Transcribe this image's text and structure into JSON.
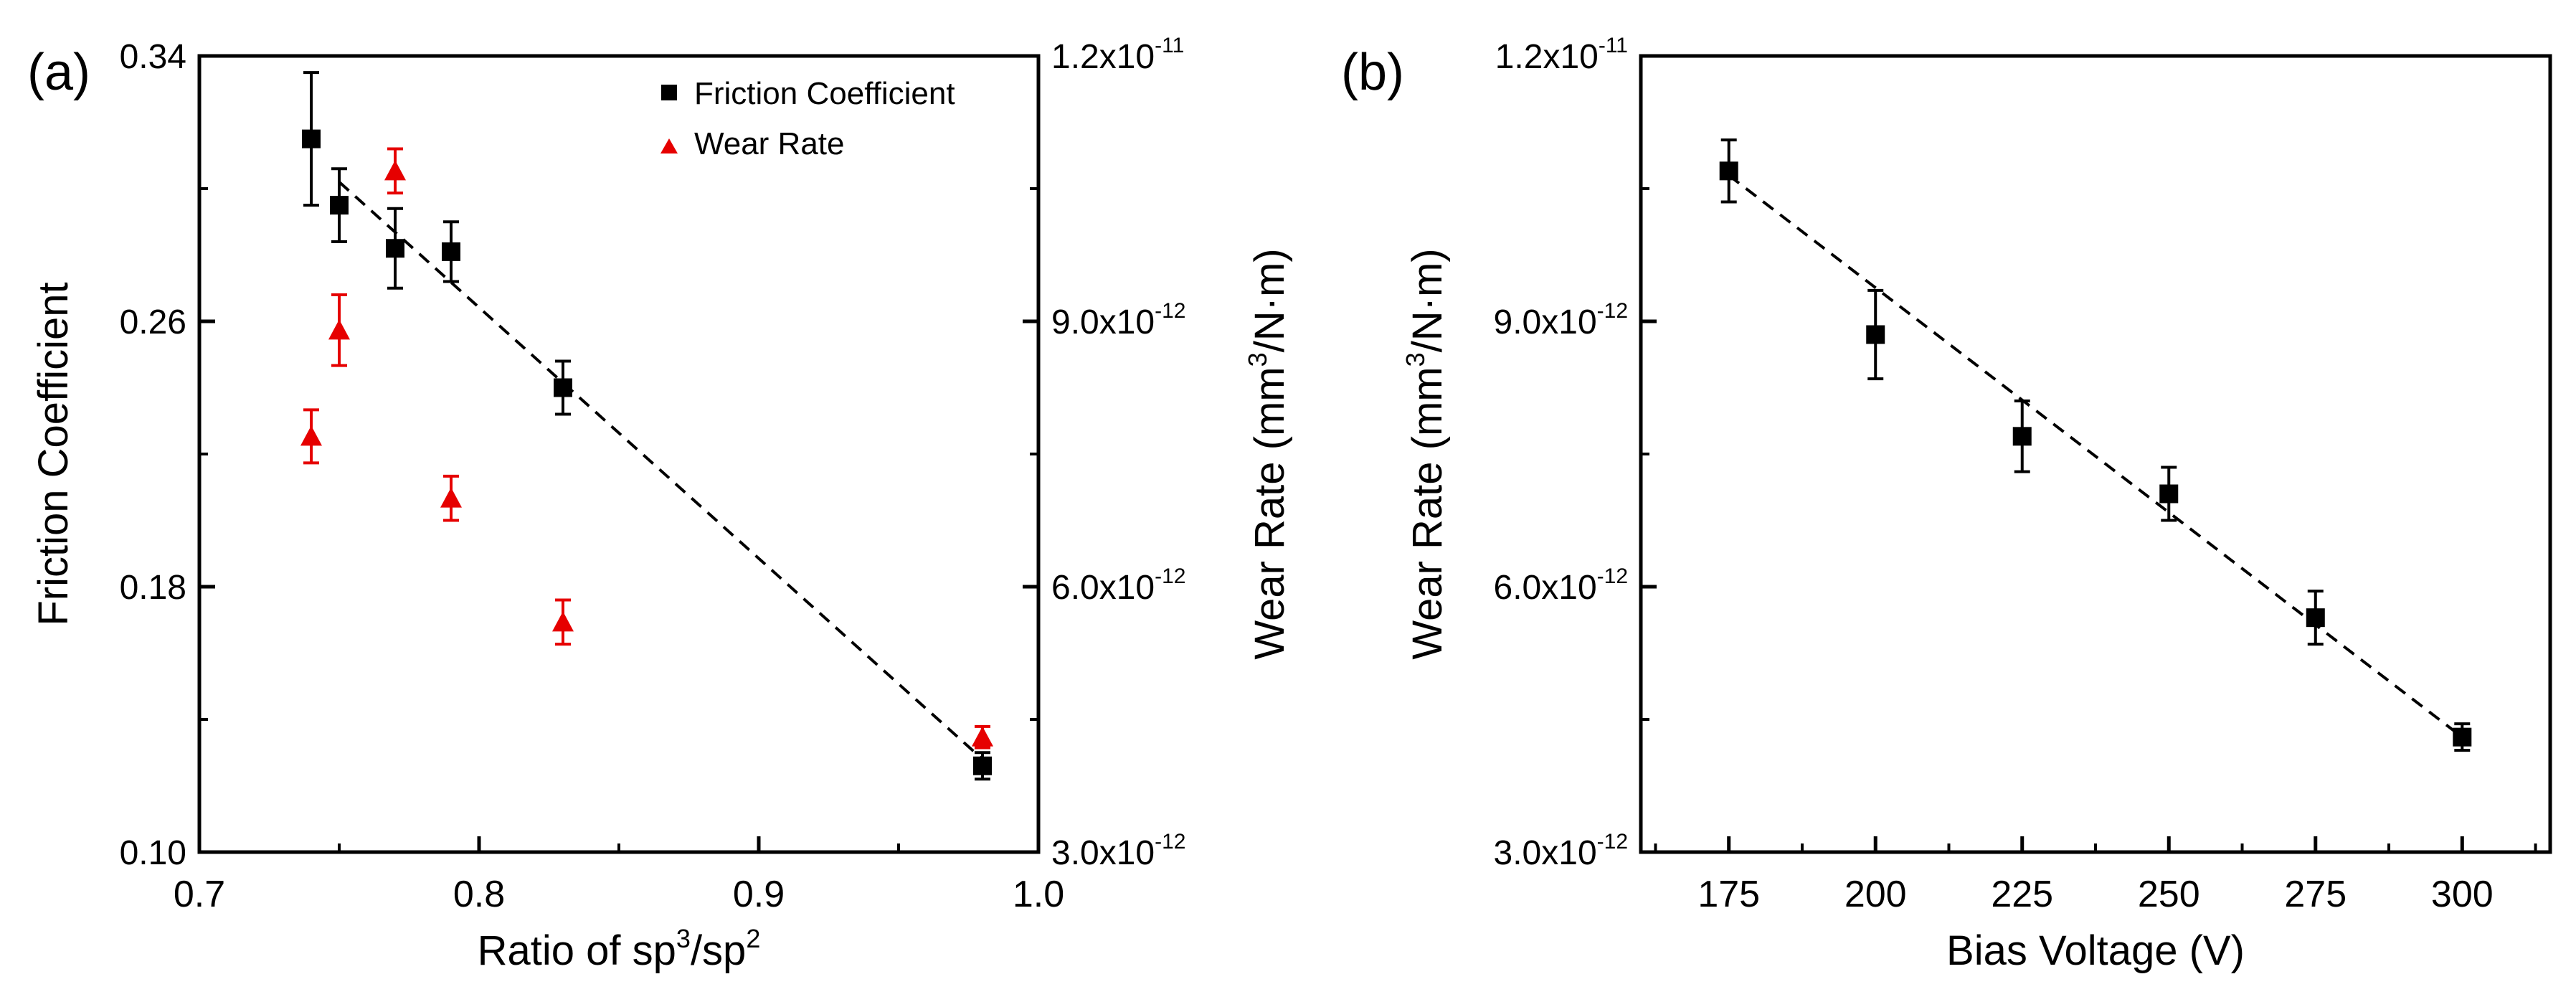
{
  "chart_data": [
    {
      "panel_label": "(a)",
      "type": "scatter",
      "xlabel_main": "Ratio of sp",
      "xlabel_sup1": "3",
      "xlabel_mid": "/sp",
      "xlabel_sup2": "2",
      "ylabel_left": "Friction Coefficient",
      "ylabel_right_main": "Wear Rate (mm",
      "ylabel_right_sup": "3",
      "ylabel_right_end": "/N·m)",
      "xlim": [
        0.7,
        1.0
      ],
      "ylim_left": [
        0.1,
        0.34
      ],
      "ylim_right": [
        3e-12,
        1.2e-11
      ],
      "xticks": [
        {
          "v": 0.7,
          "label": "0.7"
        },
        {
          "v": 0.8,
          "label": "0.8"
        },
        {
          "v": 0.9,
          "label": "0.9"
        },
        {
          "v": 1.0,
          "label": "1.0"
        }
      ],
      "yticks_left": [
        {
          "v": 0.1,
          "label": "0.10"
        },
        {
          "v": 0.18,
          "label": "0.18"
        },
        {
          "v": 0.26,
          "label": "0.26"
        },
        {
          "v": 0.34,
          "label": "0.34"
        }
      ],
      "yticks_right": [
        {
          "v": 3e-12,
          "label": "3.0x10",
          "exp": "-12"
        },
        {
          "v": 6e-12,
          "label": "6.0x10",
          "exp": "-12"
        },
        {
          "v": 9e-12,
          "label": "9.0x10",
          "exp": "-12"
        },
        {
          "v": 1.2e-11,
          "label": "1.2x10",
          "exp": "-11"
        }
      ],
      "legend_position": "top-right",
      "series": [
        {
          "name": "Friction Coefficient",
          "axis": "left",
          "marker": "square",
          "color": "#000000",
          "x": [
            0.74,
            0.75,
            0.77,
            0.79,
            0.83,
            0.98
          ],
          "y": [
            0.315,
            0.295,
            0.282,
            0.281,
            0.24,
            0.126
          ],
          "err": [
            0.02,
            0.011,
            0.012,
            0.009,
            0.008,
            0.004
          ]
        },
        {
          "name": "Wear Rate",
          "axis": "right",
          "marker": "triangle",
          "color": "#e60000",
          "x": [
            0.74,
            0.75,
            0.77,
            0.79,
            0.83,
            0.98
          ],
          "y": [
            7.7e-12,
            8.9e-12,
            1.07e-11,
            7e-12,
            5.6e-12,
            4.3e-12
          ],
          "err": [
            3e-13,
            4e-13,
            2.5e-13,
            2.5e-13,
            2.5e-13,
            1.2e-13
          ]
        }
      ],
      "fit_line": {
        "style": "dashed",
        "color": "#000000",
        "x": [
          0.75,
          0.98
        ],
        "y": [
          0.302,
          0.128
        ]
      }
    },
    {
      "panel_label": "(b)",
      "type": "scatter",
      "xlabel": "Bias Voltage (V)",
      "ylabel_main": "Wear Rate (mm",
      "ylabel_sup": "3",
      "ylabel_end": "/N·m)",
      "xlim": [
        160,
        315
      ],
      "ylim": [
        3e-12,
        1.2e-11
      ],
      "xticks": [
        {
          "v": 175,
          "label": "175"
        },
        {
          "v": 200,
          "label": "200"
        },
        {
          "v": 225,
          "label": "225"
        },
        {
          "v": 250,
          "label": "250"
        },
        {
          "v": 275,
          "label": "275"
        },
        {
          "v": 300,
          "label": "300"
        }
      ],
      "yticks": [
        {
          "v": 3e-12,
          "label": "3.0x10",
          "exp": "-12"
        },
        {
          "v": 6e-12,
          "label": "6.0x10",
          "exp": "-12"
        },
        {
          "v": 9e-12,
          "label": "9.0x10",
          "exp": "-12"
        },
        {
          "v": 1.2e-11,
          "label": "1.2x10",
          "exp": "-11"
        }
      ],
      "series": [
        {
          "name": "Wear Rate",
          "marker": "square",
          "color": "#000000",
          "x": [
            175,
            200,
            225,
            250,
            275,
            300
          ],
          "y": [
            1.07e-11,
            8.85e-12,
            7.7e-12,
            7.05e-12,
            5.65e-12,
            4.3e-12
          ],
          "err": [
            3.5e-13,
            5e-13,
            4e-13,
            3e-13,
            3e-13,
            1.5e-13
          ]
        }
      ],
      "fit_line": {
        "style": "dashed",
        "color": "#000000",
        "x": [
          175,
          300
        ],
        "y": [
          1.065e-11,
          4.3e-12
        ]
      }
    }
  ]
}
